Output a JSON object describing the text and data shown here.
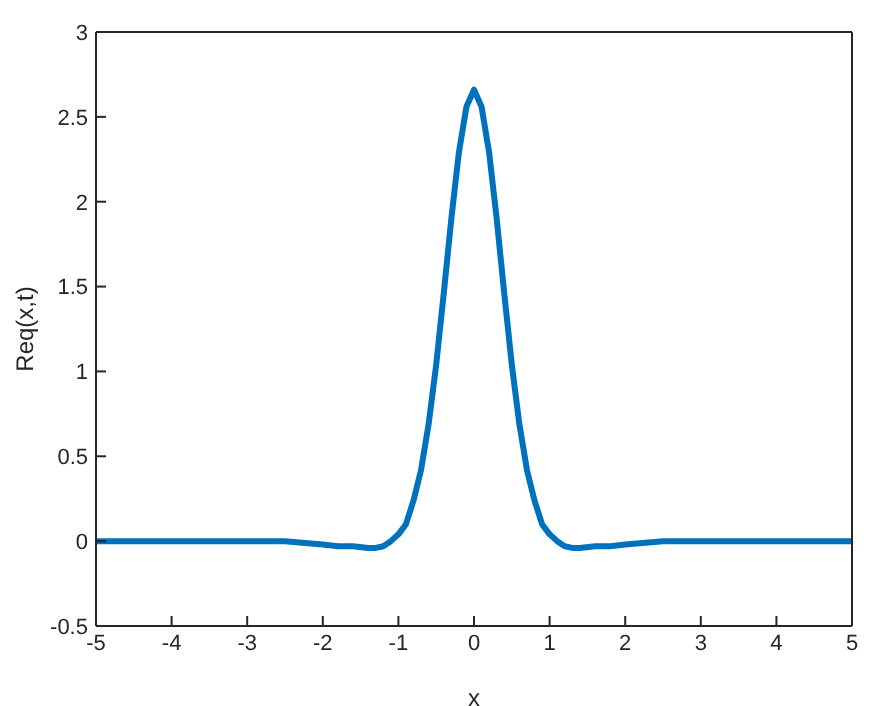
{
  "chart_data": {
    "type": "line",
    "xlabel": "x",
    "ylabel": "Req(x,t)",
    "x": [
      -5,
      -4,
      -3,
      -2.5,
      -2,
      -1.8,
      -1.6,
      -1.4,
      -1.3,
      -1.2,
      -1.1,
      -1,
      -0.9,
      -0.8,
      -0.7,
      -0.6,
      -0.5,
      -0.4,
      -0.3,
      -0.2,
      -0.1,
      0,
      0.1,
      0.2,
      0.3,
      0.4,
      0.5,
      0.6,
      0.7,
      0.8,
      0.9,
      1,
      1.1,
      1.2,
      1.3,
      1.4,
      1.6,
      1.8,
      2,
      2.5,
      3,
      4,
      5
    ],
    "series": [
      {
        "color": "#0072bd",
        "values": [
          0,
          0,
          0,
          0,
          -0.02,
          -0.03,
          -0.03,
          -0.04,
          -0.04,
          -0.03,
          0,
          0.04,
          0.1,
          0.24,
          0.42,
          0.69,
          1.04,
          1.46,
          1.9,
          2.29,
          2.56,
          2.66,
          2.56,
          2.29,
          1.9,
          1.46,
          1.04,
          0.69,
          0.42,
          0.24,
          0.1,
          0.04,
          0,
          -0.03,
          -0.04,
          -0.04,
          -0.03,
          -0.03,
          -0.02,
          0,
          0,
          0,
          0
        ]
      }
    ],
    "xlim": [
      -5,
      5
    ],
    "xticks": [
      -5,
      -4,
      -3,
      -2,
      -1,
      0,
      1,
      2,
      3,
      4,
      5
    ],
    "ylim": [
      -0.5,
      3
    ],
    "yticks": [
      -0.5,
      0,
      0.5,
      1,
      1.5,
      2,
      2.5,
      3
    ],
    "grid": false,
    "legend": false,
    "marker": "none",
    "line_style": "solid"
  }
}
